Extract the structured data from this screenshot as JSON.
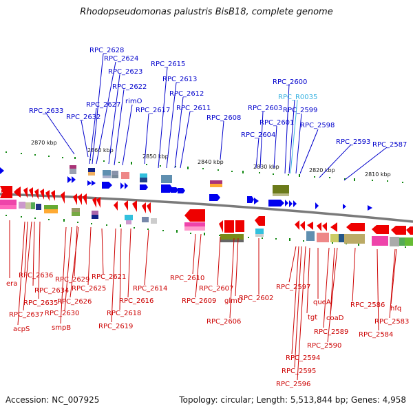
{
  "title": "Rhodopseudomonas palustris BisB18, complete genome",
  "accession": "Accession: NC_007925",
  "summary": "Topology: circular; Length: 5,513,844 bp; Genes: 4,958",
  "colors": {
    "forward_label": "#0000cc",
    "reverse_label": "#cc0000",
    "rna_label": "#33b0e0",
    "forward_arrow": "#0000ee",
    "reverse_arrow": "#ee0000",
    "backbone": "#7a7a7a",
    "tick": "#118811"
  },
  "scale_labels": [
    "2870 kbp",
    "2860 kbp",
    "2850 kbp",
    "2840 kbp",
    "2830 kbp",
    "2820 kbp",
    "2810 kbp"
  ],
  "top_labels": [
    "RPC_2628",
    "RPC_2624",
    "RPC_2623",
    "RPC_2622",
    "rimO",
    "RPC_2627",
    "RPC_2617",
    "RPC_2633",
    "RPC_2632",
    "RPC_2615",
    "RPC_2613",
    "RPC_2612",
    "RPC_2611",
    "RPC_2608",
    "RPC_2600",
    "RPC_R0035",
    "RPC_2603",
    "RPC_2599",
    "RPC_2601",
    "RPC_2598",
    "RPC_2604",
    "RPC_2593",
    "RPC_2587"
  ],
  "bottom_labels": [
    "era",
    "RPC_2636",
    "RPC_2634",
    "RPC_2635",
    "RPC_2637",
    "acpS",
    "RPC_2629",
    "RPC_2625",
    "RPC_2626",
    "RPC_2630",
    "smpB",
    "RPC_2621",
    "RPC_2616",
    "RPC_2618",
    "RPC_2619",
    "RPC_2614",
    "RPC_2610",
    "RPC_2609",
    "RPC_2607",
    "RPC_2606",
    "glmU",
    "RPC_2602",
    "RPC_2597",
    "RPC_2594",
    "RPC_2595",
    "RPC_2596",
    "queA",
    "tgt",
    "RPC_2589",
    "coaD",
    "RPC_2590",
    "RPC_2586",
    "hfq",
    "RPC_2583",
    "RPC_2584"
  ]
}
